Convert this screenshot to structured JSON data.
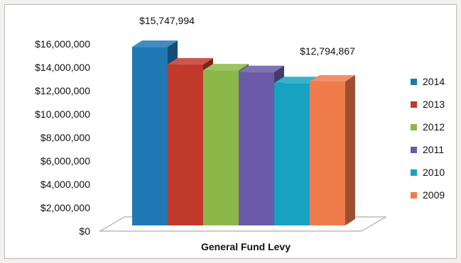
{
  "chart_data": {
    "type": "bar",
    "title": "",
    "categories": [
      "General Fund Levy"
    ],
    "series": [
      {
        "name": "2014",
        "values": [
          15747994
        ],
        "color": "#1f77b4"
      },
      {
        "name": "2013",
        "values": [
          14250000
        ],
        "color": "#c0392b"
      },
      {
        "name": "2012",
        "values": [
          13750000
        ],
        "color": "#8cb84a"
      },
      {
        "name": "2011",
        "values": [
          13600000
        ],
        "color": "#6a5aa8"
      },
      {
        "name": "2010",
        "values": [
          12650000
        ],
        "color": "#17a2c2"
      },
      {
        "name": "2009",
        "values": [
          12794867
        ],
        "color": "#f07b4b"
      }
    ],
    "data_labels": [
      {
        "series": "2014",
        "text": "$15,747,994"
      },
      {
        "series": "2009",
        "text": "$12,794,867"
      }
    ],
    "y_ticks": [
      "$0",
      "$2,000,000",
      "$4,000,000",
      "$6,000,000",
      "$8,000,000",
      "$10,000,000",
      "$12,000,000",
      "$14,000,000",
      "$16,000,000"
    ],
    "ylim": [
      0,
      16000000
    ],
    "xlabel": "",
    "ylabel": "",
    "grid": false,
    "legend_position": "right",
    "style": "3d-clustered"
  }
}
